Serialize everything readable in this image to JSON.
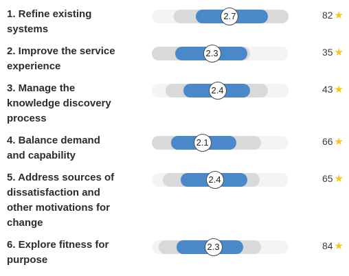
{
  "practices": [
    {
      "title": "1. Refine existing\nsystems",
      "score": "2.7",
      "count": "82",
      "range": [
        0.16,
        1.0
      ],
      "core": [
        0.32,
        0.85
      ],
      "marker": 0.57
    },
    {
      "title": "2. Improve the service\nexperience",
      "score": "2.3",
      "count": "35",
      "range": [
        0.0,
        0.72
      ],
      "core": [
        0.17,
        0.7
      ],
      "marker": 0.44
    },
    {
      "title": "3. Manage the\nknowledge discovery\nprocess",
      "score": "2.4",
      "count": "43",
      "range": [
        0.1,
        0.85
      ],
      "core": [
        0.23,
        0.72
      ],
      "marker": 0.48
    },
    {
      "title": "4. Balance demand\nand capability",
      "score": "2.1",
      "count": "66",
      "range": [
        0.0,
        0.8
      ],
      "core": [
        0.14,
        0.62
      ],
      "marker": 0.37
    },
    {
      "title": "5. Address sources of\ndissatisfaction and\nother motivations for\nchange",
      "score": "2.4",
      "count": "65",
      "range": [
        0.08,
        0.79
      ],
      "core": [
        0.21,
        0.7
      ],
      "marker": 0.46
    },
    {
      "title": "6. Explore fitness for\npurpose",
      "score": "2.3",
      "count": "84",
      "range": [
        0.05,
        0.8
      ],
      "core": [
        0.18,
        0.67
      ],
      "marker": 0.45
    }
  ],
  "icons": {
    "rating": "star-icon"
  },
  "colors": {
    "core": "#4a88c9",
    "range": "#d9d9d9",
    "track": "#f4f4f4",
    "star": "#f5c518"
  }
}
